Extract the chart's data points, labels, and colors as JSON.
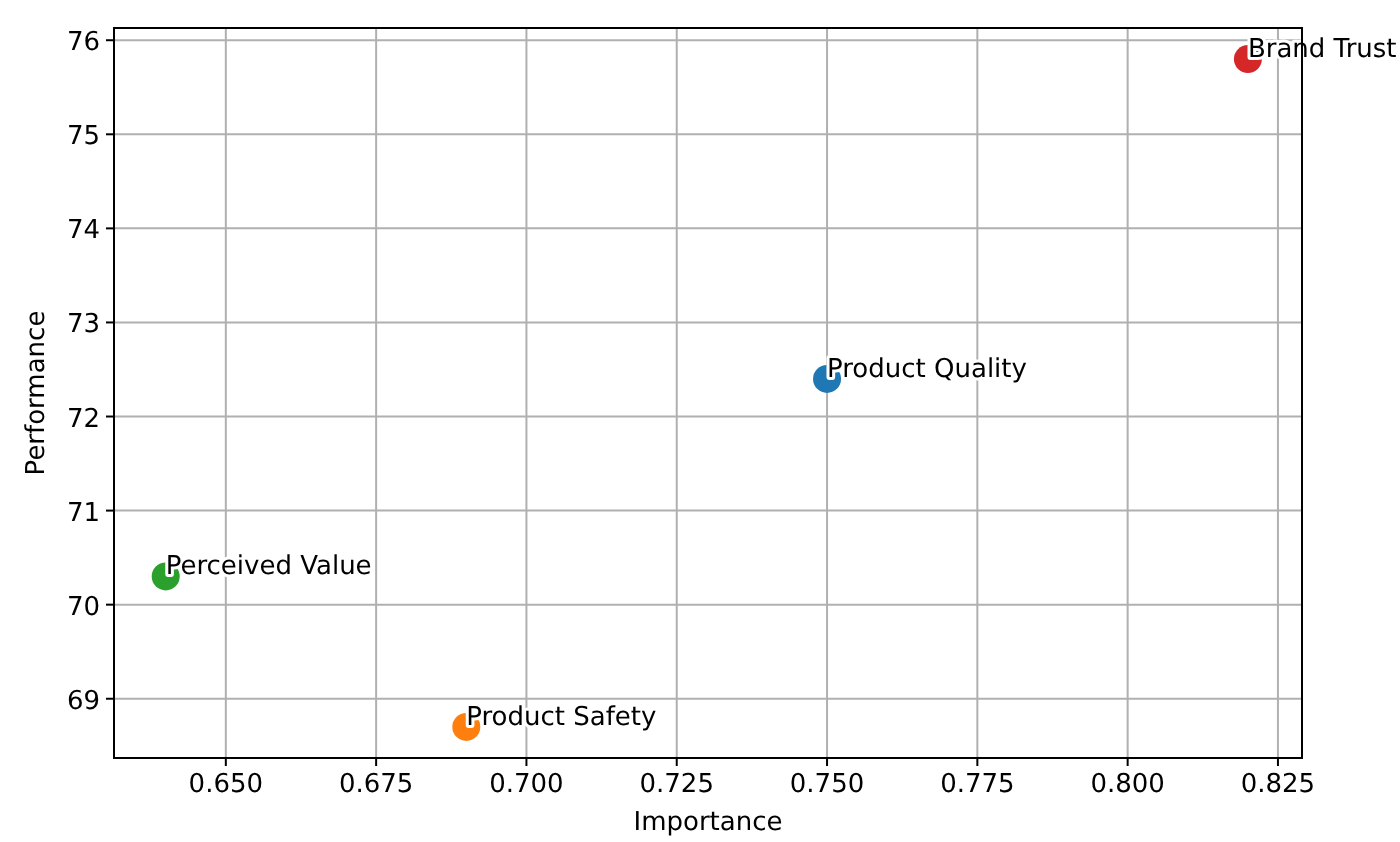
{
  "chart_data": {
    "type": "scatter",
    "xlabel": "Importance",
    "ylabel": "Performance",
    "xlim": [
      0.6314,
      0.829
    ],
    "ylim": [
      68.37,
      76.13
    ],
    "xticks": [
      {
        "value": 0.65,
        "label": "0.650"
      },
      {
        "value": 0.675,
        "label": "0.675"
      },
      {
        "value": 0.7,
        "label": "0.700"
      },
      {
        "value": 0.725,
        "label": "0.725"
      },
      {
        "value": 0.75,
        "label": "0.750"
      },
      {
        "value": 0.775,
        "label": "0.775"
      },
      {
        "value": 0.8,
        "label": "0.800"
      },
      {
        "value": 0.825,
        "label": "0.825"
      }
    ],
    "yticks": [
      69,
      70,
      71,
      72,
      73,
      74,
      75,
      76
    ],
    "grid": true,
    "marker": "circle",
    "series": [
      {
        "name": "Product Quality",
        "color": "#1f77b4",
        "x": [
          0.75
        ],
        "values": [
          72.4
        ]
      },
      {
        "name": "Product Safety",
        "color": "#ff7f0e",
        "x": [
          0.69
        ],
        "values": [
          68.7
        ]
      },
      {
        "name": "Perceived Value",
        "color": "#2ca02c",
        "x": [
          0.64
        ],
        "values": [
          70.3
        ]
      },
      {
        "name": "Brand Trust",
        "color": "#d62728",
        "x": [
          0.82
        ],
        "values": [
          75.8
        ]
      }
    ]
  }
}
